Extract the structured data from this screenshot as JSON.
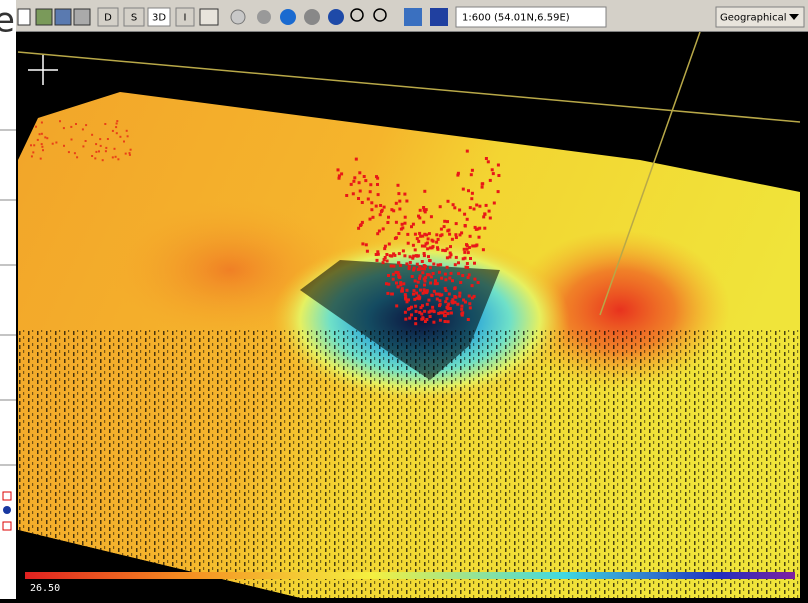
{
  "background_window": {
    "fragment": "e"
  },
  "toolbar": {
    "buttons": [
      "D",
      "S",
      "3D",
      "I"
    ],
    "scale_readout": "1:600 (54.01N,6.59E)",
    "projection": "Geographical"
  },
  "viewport": {
    "colorbar_label": "26.50"
  }
}
